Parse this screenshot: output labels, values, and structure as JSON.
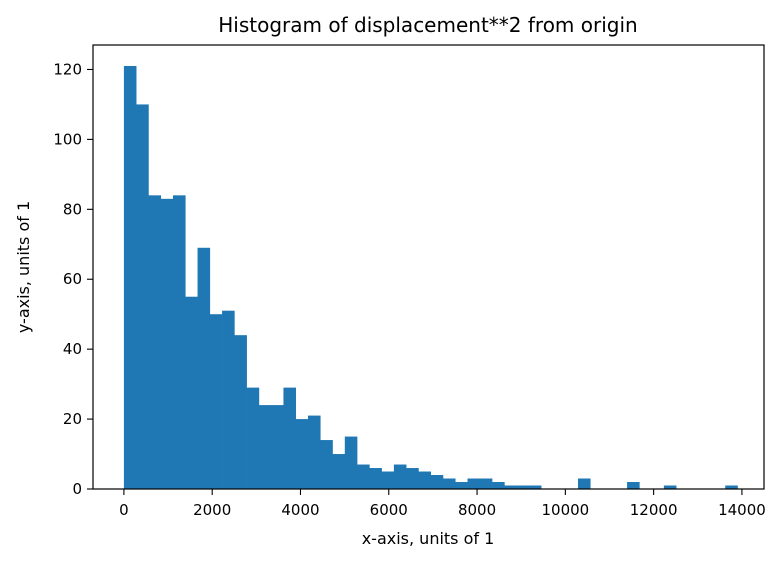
{
  "chart_data": {
    "type": "bar",
    "title": "Histogram of displacement**2 from origin",
    "xlabel": "x-axis, units of 1",
    "ylabel": "y-axis, units of 1",
    "xlim": [
      -700,
      14500
    ],
    "ylim": [
      0,
      127
    ],
    "xticks": [
      0,
      2000,
      4000,
      6000,
      8000,
      10000,
      12000,
      14000
    ],
    "yticks": [
      0,
      20,
      40,
      60,
      80,
      100,
      120
    ],
    "bins": {
      "start": 0,
      "width": 278,
      "counts": [
        121,
        110,
        84,
        83,
        84,
        55,
        69,
        50,
        51,
        44,
        29,
        24,
        24,
        29,
        20,
        21,
        14,
        10,
        15,
        7,
        6,
        5,
        7,
        6,
        5,
        4,
        3,
        2,
        3,
        3,
        2,
        1,
        1,
        1,
        0,
        0,
        0,
        3,
        0,
        0,
        0,
        2,
        0,
        0,
        1,
        0,
        0,
        0,
        0,
        1
      ]
    },
    "bar_color": "#1f77b4",
    "grid": false,
    "legend": "none"
  }
}
